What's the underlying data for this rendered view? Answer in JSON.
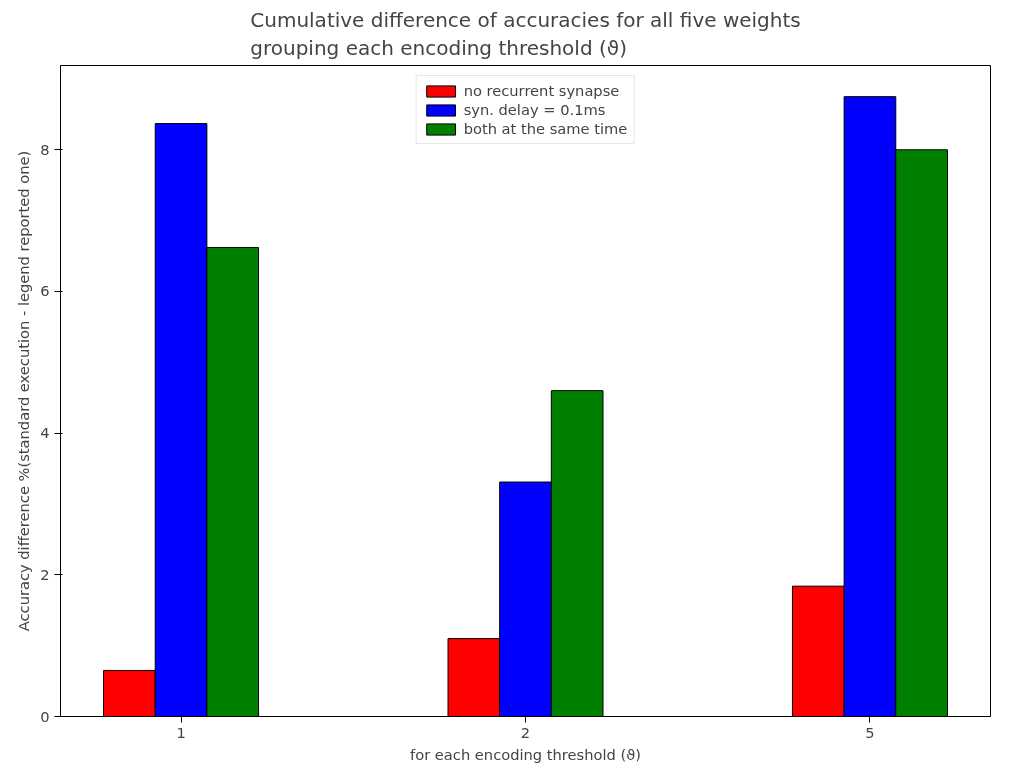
{
  "chart_data": {
    "type": "bar",
    "title": "Cumulative difference of accuracies for all five weights\ngrouping each encoding threshold (ϑ)",
    "xlabel": "for each encoding threshold (ϑ)",
    "ylabel": "Accuracy difference %(standard execution - legend reported one)",
    "categories": [
      "1",
      "2",
      "5"
    ],
    "series": [
      {
        "name": "no recurrent synapse",
        "color": "#ff0000",
        "values": [
          0.65,
          1.1,
          1.84
        ]
      },
      {
        "name": "syn. delay = 0.1ms",
        "color": "#0000ff",
        "values": [
          8.37,
          3.31,
          8.75
        ]
      },
      {
        "name": "both at the same time",
        "color": "#008000",
        "values": [
          6.62,
          4.6,
          8.0
        ]
      }
    ],
    "ylim": [
      0,
      9.19
    ],
    "yticks": [
      0,
      2,
      4,
      6,
      8
    ],
    "grid": false,
    "legend": "top"
  }
}
